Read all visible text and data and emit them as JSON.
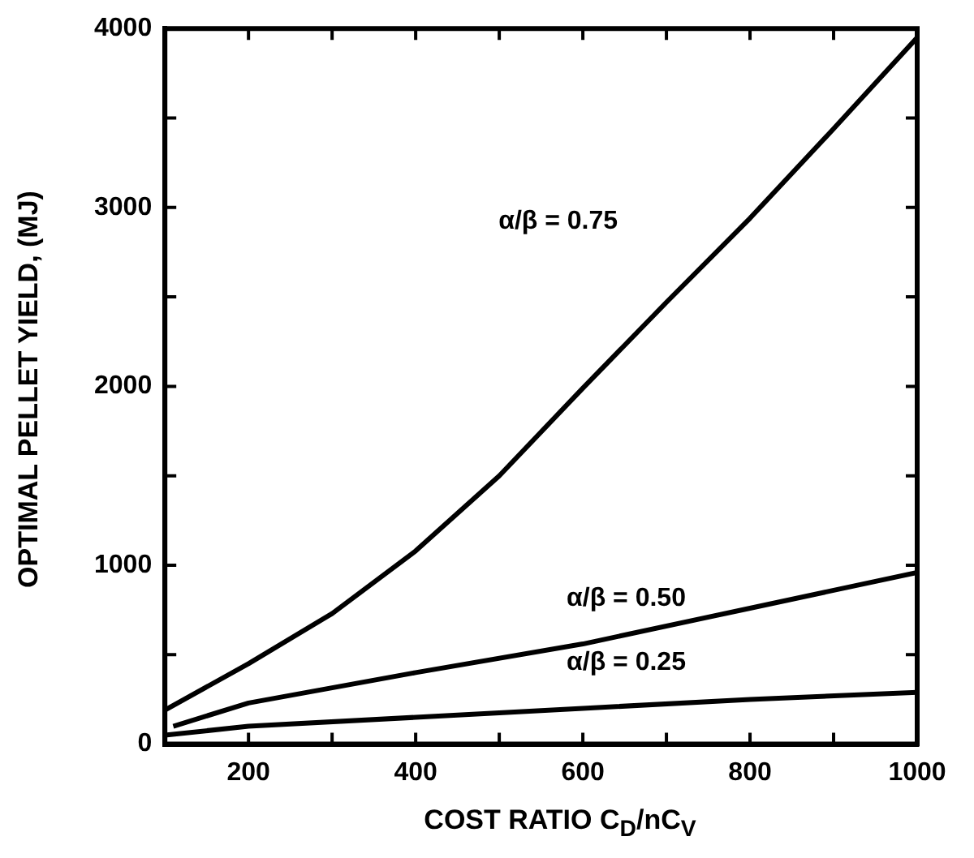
{
  "chart_data": {
    "type": "line",
    "xlabel": "COST RATIO C$_{D}$/nC$_{V}$",
    "ylabel": "OPTIMAL PELLET YIELD, (MJ)",
    "xlim": [
      100,
      1000
    ],
    "xticks": [
      200,
      {
        "value": 300,
        "label": null
      },
      400,
      {
        "value": 500,
        "label": null
      },
      600,
      {
        "value": 700,
        "label": null
      },
      800,
      {
        "value": 900,
        "label": null
      },
      1000
    ],
    "ylim": [
      0,
      4000
    ],
    "yticks": [
      0,
      {
        "value": 500,
        "label": null
      },
      1000,
      {
        "value": 1500,
        "label": null
      },
      2000,
      {
        "value": 2500,
        "label": null
      },
      3000,
      {
        "value": 3500,
        "label": null
      },
      4000
    ],
    "grid": false,
    "legend": false,
    "marker": "none",
    "line_style": "solid",
    "series": [
      {
        "color": "#000000",
        "x": [
          100,
          200,
          300,
          400,
          500,
          600,
          700,
          800,
          900,
          1000
        ],
        "values": [
          190,
          450,
          730,
          1080,
          1500,
          1990,
          2470,
          2940,
          3440,
          3950
        ]
      },
      {
        "color": "#000000",
        "x": [
          110,
          200,
          400,
          600,
          800,
          1000
        ],
        "values": [
          100,
          230,
          400,
          560,
          760,
          960
        ]
      },
      {
        "color": "#000000",
        "x": [
          100,
          200,
          400,
          600,
          800,
          1000
        ],
        "values": [
          50,
          100,
          150,
          200,
          250,
          290
        ]
      }
    ],
    "annotations": [
      "α/β = 0.75",
      "α/β = 0.50",
      "α/β = 0.25"
    ]
  }
}
